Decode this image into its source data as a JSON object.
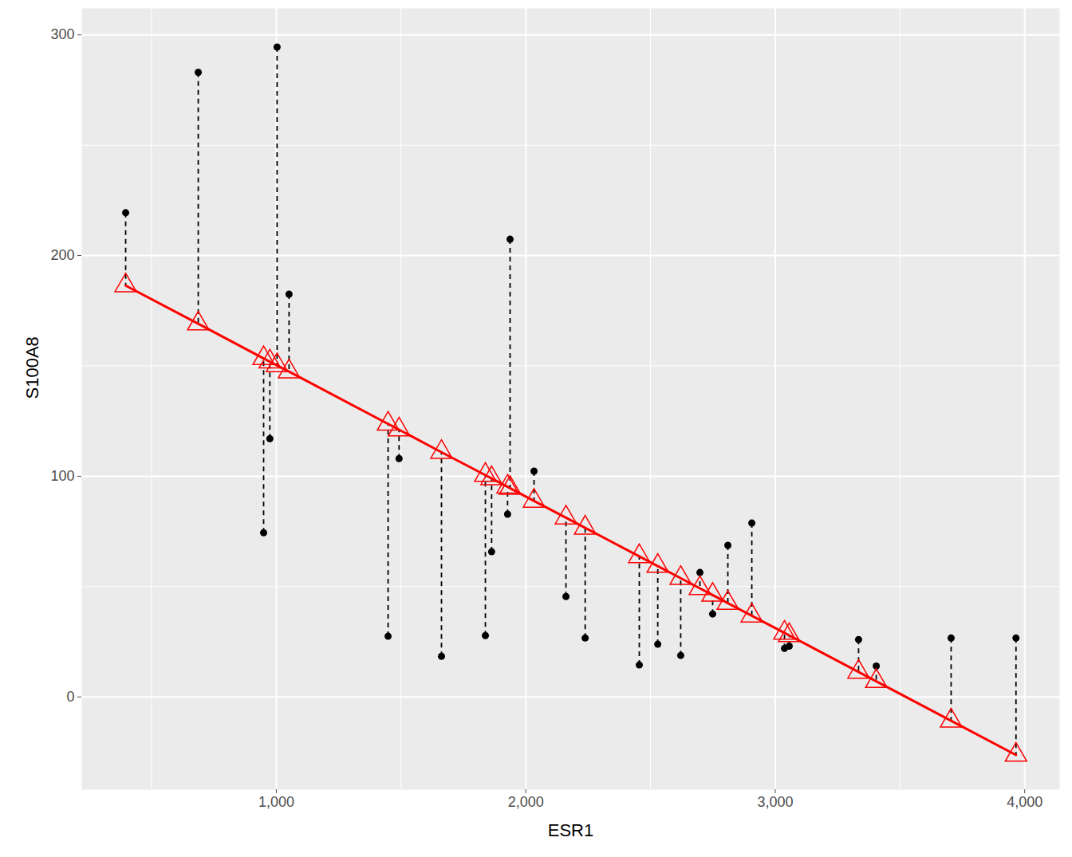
{
  "chart_data": {
    "type": "scatter",
    "x_label": "ESR1",
    "y_label": "S100A8",
    "x": [
      396,
      687,
      949,
      974,
      1003,
      1051,
      1448,
      1492,
      1662,
      1838,
      1863,
      1927,
      1937,
      2033,
      2161,
      2238,
      2455,
      2529,
      2621,
      2698,
      2749,
      2810,
      2906,
      3037,
      3056,
      3334,
      3405,
      3705,
      3965
    ],
    "series": [
      {
        "type": "scatter",
        "color": "#000000",
        "marker": "circle",
        "line_style": "dashed",
        "values": [
          219.4,
          283,
          74.4,
          117,
          294.5,
          182.5,
          27.5,
          108,
          18.4,
          27.8,
          65.8,
          82.8,
          207.4,
          102.3,
          45.5,
          26.7,
          14.5,
          23.9,
          18.8,
          56.4,
          37.6,
          68.7,
          78.8,
          22,
          23,
          26,
          14,
          26.7,
          26.7
        ]
      },
      {
        "type": "line",
        "color": "#ff0000",
        "marker": "triangle",
        "values": [
          186.4,
          169.1,
          153.4,
          151.9,
          150.2,
          147.4,
          123.7,
          121.1,
          110.9,
          100.5,
          99.0,
          95.2,
          94.6,
          88.8,
          81.2,
          76.6,
          63.7,
          59.3,
          53.8,
          49.2,
          46.2,
          42.5,
          36.8,
          29.0,
          27.9,
          11.3,
          7.1,
          -10.8,
          -26.3
        ]
      }
    ],
    "xlim": [
      220,
      4140
    ],
    "ylim": [
      -42,
      312
    ],
    "xticks": [
      1000,
      2000,
      3000,
      4000
    ],
    "yticks": [
      0,
      100,
      200,
      300
    ],
    "grid": true
  }
}
